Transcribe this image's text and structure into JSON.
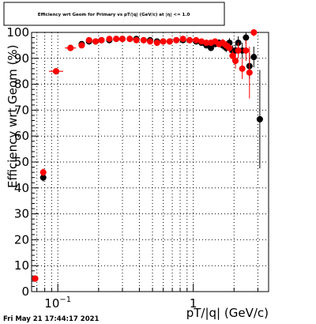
{
  "chart_data": {
    "type": "scatter",
    "title": "Efficiency wrt Geom for Primary vs pT/|q| (GeV/c) at |η| <= 1.0",
    "xlabel": "pT/|q| (GeV/c)",
    "ylabel": "Efficiency wrt Geom (%)",
    "x_scale": "log",
    "xlim": [
      0.064,
      3.6
    ],
    "ylim": [
      0,
      100
    ],
    "x_tick_labels": [
      {
        "value": 0.1,
        "base": "10",
        "exp": "−1"
      },
      {
        "value": 1,
        "base": "1",
        "exp": ""
      }
    ],
    "y_ticks": [
      0,
      10,
      20,
      30,
      40,
      50,
      60,
      70,
      80,
      90,
      100
    ],
    "grid": true,
    "legend": "none",
    "series": [
      {
        "color": "#000000",
        "points": [
          {
            "x": 0.068,
            "y": 5,
            "yerr": 1
          },
          {
            "x": 0.078,
            "y": 44,
            "yerr": 1.5
          },
          {
            "x": 0.097,
            "y": 85,
            "yerr": 1
          },
          {
            "x": 0.124,
            "y": 94,
            "yerr": 0.8
          },
          {
            "x": 0.15,
            "y": 95.5,
            "yerr": 0.5
          },
          {
            "x": 0.17,
            "y": 96.5,
            "yerr": 0.5
          },
          {
            "x": 0.19,
            "y": 96.5,
            "yerr": 0.5
          },
          {
            "x": 0.21,
            "y": 97,
            "yerr": 0.5
          },
          {
            "x": 0.24,
            "y": 97,
            "yerr": 0.5
          },
          {
            "x": 0.27,
            "y": 97.5,
            "yerr": 0.5
          },
          {
            "x": 0.3,
            "y": 97.5,
            "yerr": 0.5
          },
          {
            "x": 0.34,
            "y": 97.5,
            "yerr": 0.5
          },
          {
            "x": 0.38,
            "y": 97.5,
            "yerr": 0.5
          },
          {
            "x": 0.43,
            "y": 97,
            "yerr": 0.5
          },
          {
            "x": 0.48,
            "y": 97,
            "yerr": 0.5
          },
          {
            "x": 0.54,
            "y": 96.5,
            "yerr": 0.5
          },
          {
            "x": 0.6,
            "y": 96.5,
            "yerr": 0.5
          },
          {
            "x": 0.67,
            "y": 96.5,
            "yerr": 0.5
          },
          {
            "x": 0.75,
            "y": 97,
            "yerr": 0.5
          },
          {
            "x": 0.84,
            "y": 97,
            "yerr": 0.5
          },
          {
            "x": 0.94,
            "y": 97,
            "yerr": 0.7
          },
          {
            "x": 1.05,
            "y": 96.5,
            "yerr": 0.8
          },
          {
            "x": 1.15,
            "y": 96,
            "yerr": 1
          },
          {
            "x": 1.25,
            "y": 95,
            "yerr": 1
          },
          {
            "x": 1.35,
            "y": 94,
            "yerr": 1.2
          },
          {
            "x": 1.45,
            "y": 95.5,
            "yerr": 1.2
          },
          {
            "x": 1.55,
            "y": 96,
            "yerr": 1.3
          },
          {
            "x": 1.65,
            "y": 95,
            "yerr": 1.5
          },
          {
            "x": 1.75,
            "y": 94,
            "yerr": 1.6
          },
          {
            "x": 1.85,
            "y": 96,
            "yerr": 1.8
          },
          {
            "x": 1.95,
            "y": 93,
            "yerr": 2
          },
          {
            "x": 2.05,
            "y": 93,
            "yerr": 2.5
          },
          {
            "x": 2.15,
            "y": 96,
            "yerr": 2.5
          },
          {
            "x": 2.3,
            "y": 93,
            "yerr": 3
          },
          {
            "x": 2.45,
            "y": 98,
            "yerr": 2.5
          },
          {
            "x": 2.6,
            "y": 87,
            "yerr": 5
          },
          {
            "x": 2.8,
            "y": 90.5,
            "yerr": 4
          },
          {
            "x": 3.1,
            "y": 66.5,
            "yerr": 19
          }
        ]
      },
      {
        "color": "#ff0000",
        "points": [
          {
            "x": 0.068,
            "y": 5,
            "yerr": 1
          },
          {
            "x": 0.078,
            "y": 46,
            "yerr": 1.5
          },
          {
            "x": 0.097,
            "y": 85,
            "yerr": 1
          },
          {
            "x": 0.124,
            "y": 94,
            "yerr": 0.8
          },
          {
            "x": 0.15,
            "y": 95,
            "yerr": 0.5
          },
          {
            "x": 0.17,
            "y": 97,
            "yerr": 0.5
          },
          {
            "x": 0.19,
            "y": 96.5,
            "yerr": 0.5
          },
          {
            "x": 0.21,
            "y": 97,
            "yerr": 0.5
          },
          {
            "x": 0.24,
            "y": 97.5,
            "yerr": 0.5
          },
          {
            "x": 0.27,
            "y": 97.5,
            "yerr": 0.5
          },
          {
            "x": 0.3,
            "y": 97.5,
            "yerr": 0.5
          },
          {
            "x": 0.34,
            "y": 97.5,
            "yerr": 0.5
          },
          {
            "x": 0.38,
            "y": 97,
            "yerr": 0.5
          },
          {
            "x": 0.43,
            "y": 97,
            "yerr": 0.5
          },
          {
            "x": 0.48,
            "y": 96.5,
            "yerr": 0.5
          },
          {
            "x": 0.54,
            "y": 96,
            "yerr": 0.5
          },
          {
            "x": 0.6,
            "y": 96.5,
            "yerr": 0.5
          },
          {
            "x": 0.67,
            "y": 96.5,
            "yerr": 0.5
          },
          {
            "x": 0.75,
            "y": 97,
            "yerr": 0.5
          },
          {
            "x": 0.84,
            "y": 97.5,
            "yerr": 0.5
          },
          {
            "x": 0.94,
            "y": 97,
            "yerr": 0.7
          },
          {
            "x": 1.05,
            "y": 97,
            "yerr": 0.8
          },
          {
            "x": 1.15,
            "y": 96.5,
            "yerr": 1
          },
          {
            "x": 1.25,
            "y": 96,
            "yerr": 1
          },
          {
            "x": 1.35,
            "y": 96,
            "yerr": 1.2
          },
          {
            "x": 1.45,
            "y": 96.5,
            "yerr": 1.2
          },
          {
            "x": 1.55,
            "y": 95.5,
            "yerr": 1.3
          },
          {
            "x": 1.65,
            "y": 96,
            "yerr": 1.5
          },
          {
            "x": 1.75,
            "y": 95,
            "yerr": 1.6
          },
          {
            "x": 1.85,
            "y": 94,
            "yerr": 1.8
          },
          {
            "x": 1.95,
            "y": 91,
            "yerr": 2
          },
          {
            "x": 2.05,
            "y": 89,
            "yerr": 3
          },
          {
            "x": 2.15,
            "y": 93,
            "yerr": 3
          },
          {
            "x": 2.3,
            "y": 86,
            "yerr": 4
          },
          {
            "x": 2.45,
            "y": 93,
            "yerr": 4
          },
          {
            "x": 2.6,
            "y": 84.5,
            "yerr": 10
          },
          {
            "x": 2.8,
            "y": 100,
            "yerr": 1.5
          }
        ]
      }
    ]
  },
  "footer": {
    "timestamp": "Fri May 21 17:44:17 2021"
  }
}
